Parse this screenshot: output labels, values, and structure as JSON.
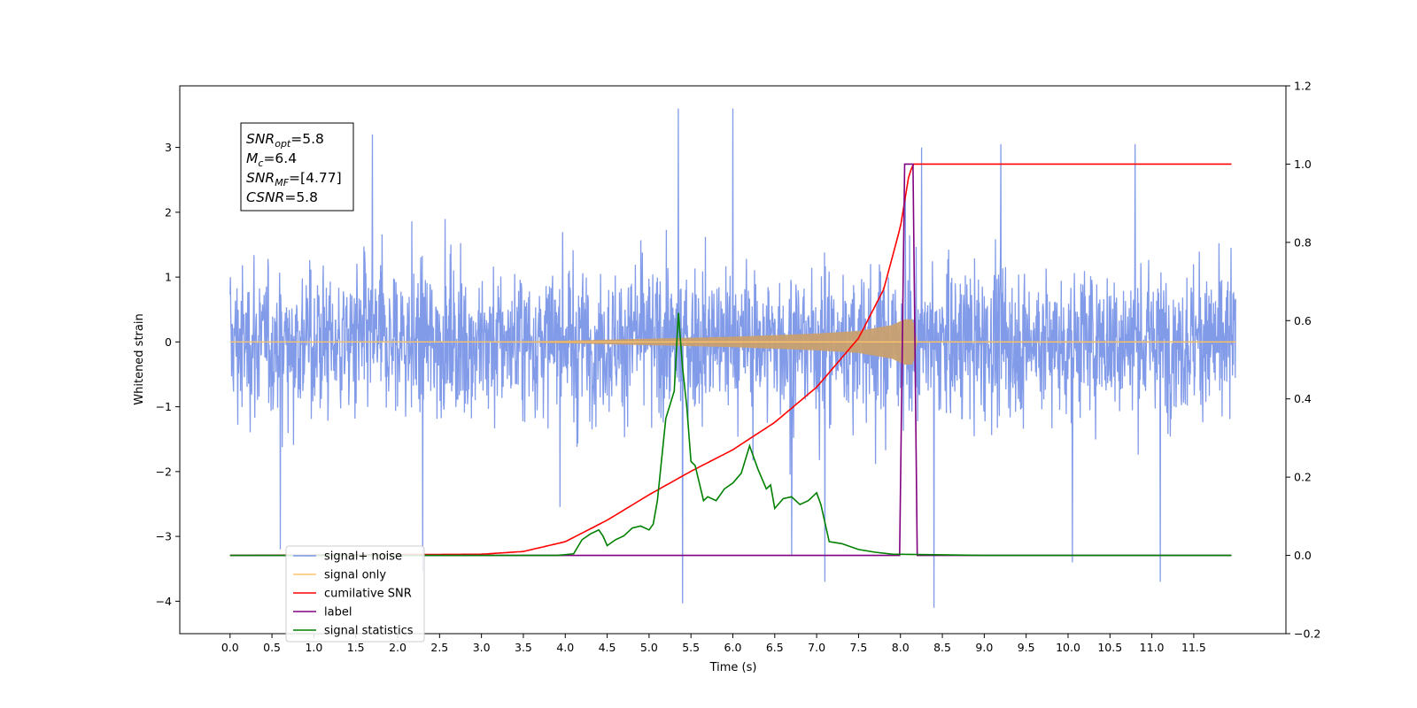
{
  "chart_data": {
    "type": "line",
    "title": "",
    "xlabel": "Time (s)",
    "ylabel": "Whitened strain",
    "y2label": "",
    "xlim": [
      -0.6,
      12.6
    ],
    "ylim": [
      -4.5,
      3.95
    ],
    "y2lim": [
      -0.2,
      1.2
    ],
    "grid": false,
    "legend_position": "lower-left",
    "x_ticks": [
      "0.0",
      "0.5",
      "1.0",
      "1.5",
      "2.0",
      "2.5",
      "3.0",
      "3.5",
      "4.0",
      "4.5",
      "5.0",
      "5.5",
      "6.0",
      "6.5",
      "7.0",
      "7.5",
      "8.0",
      "8.5",
      "9.0",
      "9.5",
      "10.0",
      "10.5",
      "11.0",
      "11.5"
    ],
    "y_ticks": [
      "3",
      "2",
      "1",
      "0",
      "−1",
      "−2",
      "−3",
      "−4"
    ],
    "y2_ticks": [
      "1.2",
      "1.0",
      "0.8",
      "0.6",
      "0.4",
      "0.2",
      "0.0",
      "−0.2"
    ],
    "annotation": {
      "lines": [
        {
          "base": "SNR",
          "sub": "opt",
          "rest": "=5.8"
        },
        {
          "base": "M",
          "sub": "c",
          "rest": "=6.4"
        },
        {
          "base": "SNR",
          "sub": "MF",
          "rest": "=[4.77]"
        },
        {
          "base": "CSNR",
          "sub": "",
          "rest": "=5.8"
        }
      ]
    },
    "legend": [
      {
        "label": "signal+ noise",
        "color": "#7b96e8"
      },
      {
        "label": "signal only",
        "color": "#ffc36a"
      },
      {
        "label": "cumilative SNR",
        "color": "#ff0000"
      },
      {
        "label": "label",
        "color": "#800080"
      },
      {
        "label": "signal statistics",
        "color": "#008000"
      }
    ],
    "series": [
      {
        "name": "signal+ noise",
        "axis": "left",
        "color": "#7b96e8",
        "x_start": 0.0,
        "x_end": 12.0,
        "envelope": {
          "typical": 1.25,
          "peak_high": 3.6,
          "peak_low": -4.12
        },
        "spikes": [
          [
            0.6,
            -3.2
          ],
          [
            1.7,
            3.2
          ],
          [
            2.3,
            -3.55
          ],
          [
            5.35,
            3.6
          ],
          [
            5.4,
            -4.03
          ],
          [
            6.0,
            3.6
          ],
          [
            6.7,
            -3.3
          ],
          [
            7.1,
            -3.7
          ],
          [
            8.25,
            3.0
          ],
          [
            8.4,
            -4.1
          ],
          [
            9.2,
            3.05
          ],
          [
            10.05,
            -3.4
          ],
          [
            10.8,
            3.05
          ],
          [
            11.1,
            -3.7
          ]
        ]
      },
      {
        "name": "signal only",
        "axis": "left",
        "color": "#ffc36a",
        "x": [
          0.0,
          3.5,
          4.0,
          5.0,
          6.0,
          7.0,
          7.5,
          7.9,
          8.05,
          8.15,
          8.2,
          12.0
        ],
        "amplitude": [
          0.005,
          0.01,
          0.02,
          0.05,
          0.08,
          0.13,
          0.17,
          0.26,
          0.35,
          0.35,
          0.01,
          0.01
        ]
      },
      {
        "name": "cumilative SNR",
        "axis": "right",
        "color": "#ff0000",
        "x": [
          0.0,
          3.0,
          3.5,
          4.0,
          4.5,
          5.0,
          5.5,
          6.0,
          6.5,
          7.0,
          7.5,
          7.8,
          8.0,
          8.1,
          8.15,
          11.95
        ],
        "values": [
          0.0,
          0.003,
          0.01,
          0.035,
          0.09,
          0.155,
          0.215,
          0.27,
          0.34,
          0.43,
          0.555,
          0.68,
          0.84,
          0.97,
          1.0,
          1.0
        ]
      },
      {
        "name": "label",
        "axis": "right",
        "color": "#800080",
        "x": [
          0.0,
          7.99,
          8.05,
          8.15,
          8.2,
          11.95
        ],
        "values": [
          0.0,
          0.0,
          1.0,
          1.0,
          0.0,
          0.0
        ]
      },
      {
        "name": "signal statistics",
        "axis": "right",
        "color": "#008000",
        "x": [
          0.0,
          3.9,
          4.1,
          4.2,
          4.3,
          4.4,
          4.45,
          4.5,
          4.6,
          4.7,
          4.8,
          4.9,
          5.0,
          5.05,
          5.1,
          5.2,
          5.3,
          5.35,
          5.4,
          5.45,
          5.5,
          5.55,
          5.65,
          5.7,
          5.8,
          5.9,
          6.0,
          6.1,
          6.2,
          6.3,
          6.4,
          6.45,
          6.5,
          6.6,
          6.7,
          6.8,
          6.9,
          7.0,
          7.05,
          7.15,
          7.3,
          7.5,
          7.7,
          7.9,
          8.3,
          9.0,
          11.95
        ],
        "values": [
          0.0,
          0.0,
          0.004,
          0.04,
          0.055,
          0.065,
          0.05,
          0.025,
          0.04,
          0.05,
          0.07,
          0.075,
          0.065,
          0.08,
          0.14,
          0.35,
          0.42,
          0.62,
          0.48,
          0.38,
          0.24,
          0.23,
          0.14,
          0.15,
          0.14,
          0.17,
          0.185,
          0.21,
          0.28,
          0.22,
          0.17,
          0.18,
          0.12,
          0.145,
          0.15,
          0.13,
          0.14,
          0.16,
          0.13,
          0.035,
          0.03,
          0.015,
          0.008,
          0.003,
          0.002,
          0.0,
          0.0
        ]
      }
    ]
  }
}
